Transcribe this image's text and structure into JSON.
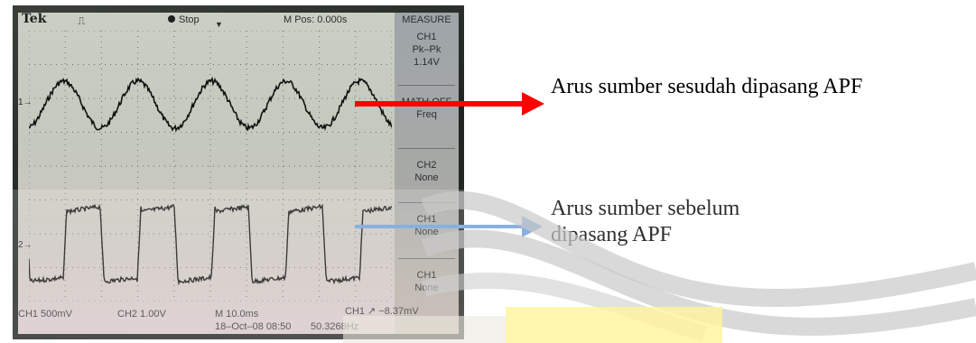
{
  "scope": {
    "brand": "Tek",
    "trigger_symbol": "⎍",
    "run_state": "Stop",
    "position": "M Pos: 0.000s",
    "menu_title": "MEASURE",
    "measurements": [
      {
        "source": "CH1",
        "type": "Pk–Pk",
        "value": "1.14V"
      },
      {
        "source": "MATH OFF",
        "type": "Freq",
        "value": ""
      },
      {
        "source": "CH2",
        "type": "None",
        "value": ""
      },
      {
        "source": "CH1",
        "type": "None",
        "value": ""
      },
      {
        "source": "CH1",
        "type": "None",
        "value": ""
      }
    ],
    "ch1_marker": "1→",
    "ch2_marker": "2→",
    "ch1_scale": "CH1  500mV",
    "ch2_scale": "CH2  1.00V",
    "timebase": "M 10.0ms",
    "trigger": "CH1 ↗ −8.37mV",
    "datetime": "18–Oct–08 08:50",
    "frequency": "50.3268Hz"
  },
  "annotations": {
    "after_apf": "Arus sumber sesudah dipasang APF",
    "before_apf": "Arus sumber sebelum dipasang APF"
  },
  "colors": {
    "after_arrow": "#ff0000",
    "before_arrow": "#6f9fd8",
    "trace": "#111111"
  }
}
